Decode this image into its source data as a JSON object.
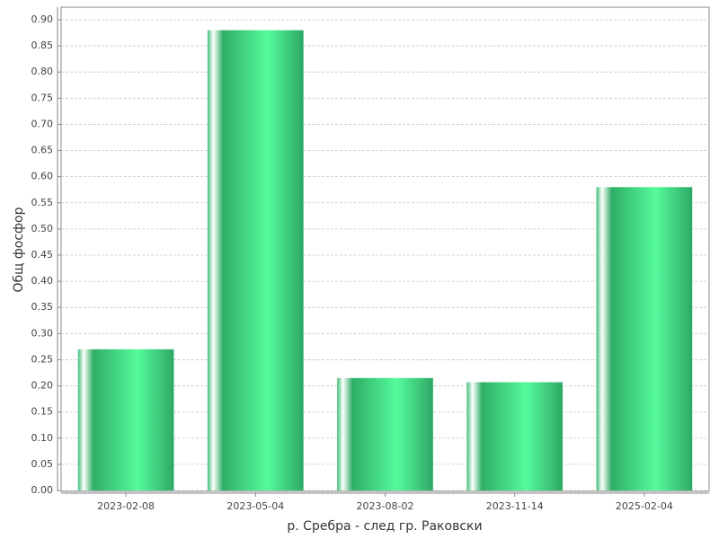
{
  "chart_data": {
    "type": "bar",
    "x_label": "р. Сребра - след гр. Раковски",
    "y_label": "Общ фосфор",
    "categories": [
      "2023-02-08",
      "2023-05-04",
      "2023-08-02",
      "2023-11-14",
      "2025-02-04"
    ],
    "values": [
      0.27,
      0.88,
      0.215,
      0.207,
      0.58
    ],
    "color": "#3ddc84",
    "ylim": [
      0,
      0.924
    ],
    "yticks": [
      {
        "value": 0,
        "label": "0.00"
      },
      {
        "value": 0.05,
        "label": "0.05"
      },
      {
        "value": 0.1,
        "label": "0.10"
      },
      {
        "value": 0.15,
        "label": "0.15"
      },
      {
        "value": 0.2,
        "label": "0.20"
      },
      {
        "value": 0.25,
        "label": "0.25"
      },
      {
        "value": 0.3,
        "label": "0.30"
      },
      {
        "value": 0.35,
        "label": "0.35"
      },
      {
        "value": 0.4,
        "label": "0.40"
      },
      {
        "value": 0.45,
        "label": "0.45"
      },
      {
        "value": 0.5,
        "label": "0.50"
      },
      {
        "value": 0.55,
        "label": "0.55"
      },
      {
        "value": 0.6,
        "label": "0.60"
      },
      {
        "value": 0.65,
        "label": "0.65"
      },
      {
        "value": 0.7,
        "label": "0.70"
      },
      {
        "value": 0.75,
        "label": "0.75"
      },
      {
        "value": 0.8,
        "label": "0.80"
      },
      {
        "value": 0.85,
        "label": "0.85"
      },
      {
        "value": 0.9,
        "label": "0.90"
      }
    ],
    "grid": true
  }
}
